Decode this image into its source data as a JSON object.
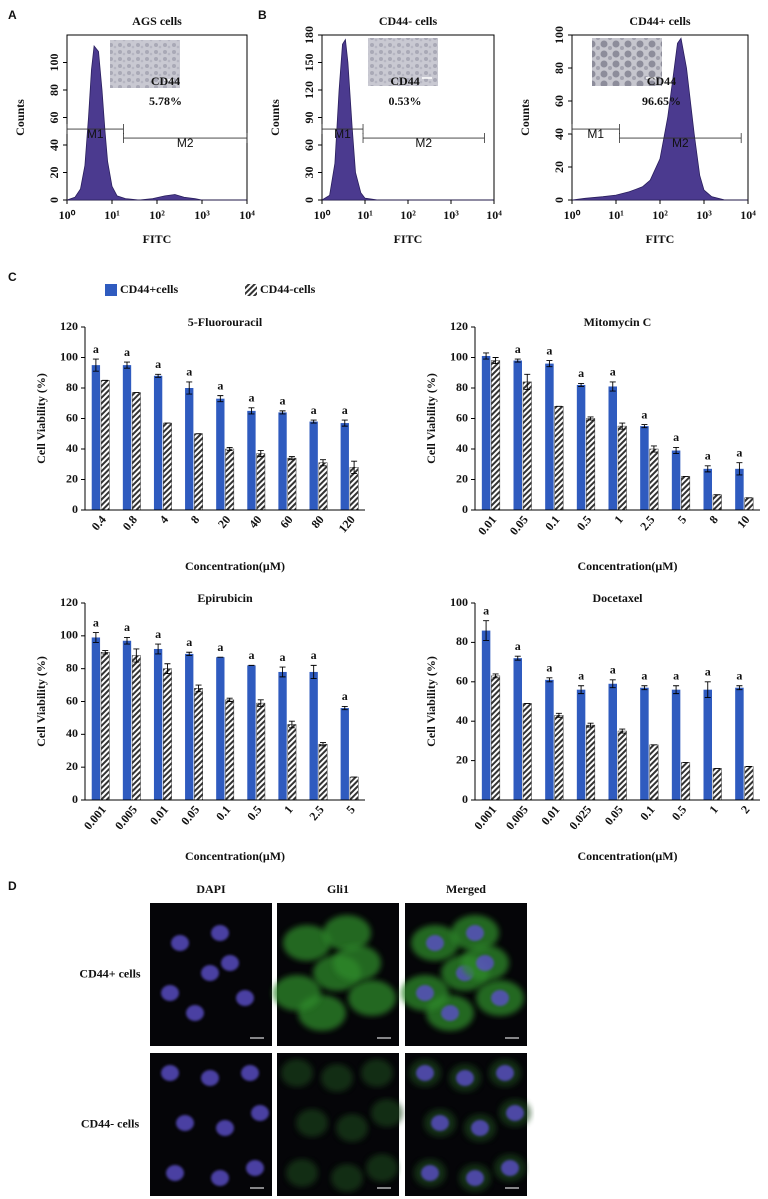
{
  "panels": [
    "A",
    "B",
    "C",
    "D"
  ],
  "legend": [
    {
      "name": "CD44+cells",
      "color": "#2f5bbf"
    },
    {
      "name": "CD44-cells",
      "color": "#333333",
      "hatch": true
    }
  ],
  "chart_data": [
    {
      "type": "area",
      "title": "AGS cells",
      "xlabel": "FITC",
      "ylabel": "Counts",
      "color": "#4b3a8f",
      "xlog": true,
      "xlim": [
        1,
        10000
      ],
      "xticks": [
        {
          "value": 1,
          "label": "10⁰"
        },
        {
          "value": 10,
          "label": "10¹"
        },
        {
          "value": 100,
          "label": "10²"
        },
        {
          "value": 1000,
          "label": "10³"
        },
        {
          "value": 10000,
          "label": "10⁴"
        }
      ],
      "ylim": [
        0,
        120
      ],
      "yticks": [
        0,
        20,
        40,
        60,
        80,
        100
      ],
      "x": [
        1,
        1.5,
        2,
        2.5,
        3,
        3.5,
        4,
        5,
        6,
        7,
        8,
        10,
        13,
        20,
        40,
        80,
        150,
        250,
        400,
        700,
        1000,
        10000
      ],
      "values": [
        0,
        2,
        8,
        25,
        60,
        95,
        112,
        108,
        80,
        50,
        28,
        10,
        3,
        1,
        0,
        1,
        3,
        4,
        2,
        1,
        0,
        0
      ],
      "gates": [
        {
          "name": "M1",
          "range": [
            1,
            18
          ]
        },
        {
          "name": "M2",
          "range": [
            18,
            10000
          ]
        }
      ],
      "annotation": [
        "CD44",
        "5.78%"
      ]
    },
    {
      "type": "area",
      "title": "CD44- cells",
      "xlabel": "FITC",
      "ylabel": "Counts",
      "color": "#4b3a8f",
      "xlog": true,
      "xlim": [
        1,
        10000
      ],
      "xticks": [
        {
          "value": 1,
          "label": "10⁰"
        },
        {
          "value": 10,
          "label": "10¹"
        },
        {
          "value": 100,
          "label": "10²"
        },
        {
          "value": 1000,
          "label": "10³"
        },
        {
          "value": 10000,
          "label": "10⁴"
        }
      ],
      "ylim": [
        0,
        180
      ],
      "yticks": [
        0,
        30,
        60,
        90,
        120,
        150,
        180
      ],
      "x": [
        1,
        1.5,
        2,
        2.5,
        3,
        3.5,
        4,
        5,
        6,
        8,
        10,
        20,
        10000
      ],
      "values": [
        0,
        5,
        40,
        120,
        170,
        175,
        150,
        80,
        30,
        8,
        2,
        0,
        0
      ],
      "gates": [
        {
          "name": "M1",
          "range": [
            1,
            9
          ]
        },
        {
          "name": "M2",
          "range": [
            9,
            6000
          ]
        }
      ],
      "annotation": [
        "CD44",
        "0.53%"
      ]
    },
    {
      "type": "area",
      "title": "CD44+ cells",
      "xlabel": "FITC",
      "ylabel": "Counts",
      "color": "#4b3a8f",
      "xlog": true,
      "xlim": [
        1,
        10000
      ],
      "xticks": [
        {
          "value": 1,
          "label": "10⁰"
        },
        {
          "value": 10,
          "label": "10¹"
        },
        {
          "value": 100,
          "label": "10²"
        },
        {
          "value": 1000,
          "label": "10³"
        },
        {
          "value": 10000,
          "label": "10⁴"
        }
      ],
      "ylim": [
        0,
        100
      ],
      "yticks": [
        0,
        20,
        40,
        60,
        80,
        100
      ],
      "x": [
        1,
        2,
        5,
        10,
        20,
        40,
        60,
        100,
        150,
        200,
        250,
        300,
        400,
        600,
        800,
        1000,
        1500,
        3000,
        10000
      ],
      "values": [
        0,
        1,
        2,
        3,
        5,
        8,
        12,
        25,
        50,
        75,
        95,
        98,
        80,
        40,
        15,
        6,
        2,
        0,
        0
      ],
      "gates": [
        {
          "name": "M1",
          "range": [
            1,
            12
          ]
        },
        {
          "name": "M2",
          "range": [
            12,
            7000
          ]
        }
      ],
      "annotation": [
        "CD44",
        "96.65%"
      ]
    },
    {
      "type": "bar",
      "title": "5-Fluorouracil",
      "xlabel": "Concentration(μM)",
      "ylabel": "Cell Viability (%)",
      "categories": [
        "0.4",
        "0.8",
        "4",
        "8",
        "20",
        "40",
        "60",
        "80",
        "120"
      ],
      "ylim": [
        0,
        120
      ],
      "yticks": [
        0,
        20,
        40,
        60,
        80,
        100,
        120
      ],
      "series": [
        {
          "color": "#2f5bbf",
          "values": [
            95,
            95,
            88,
            80,
            73,
            65,
            64,
            58,
            57
          ],
          "errors": [
            4,
            2,
            1,
            4,
            2,
            2,
            1,
            1,
            2
          ]
        },
        {
          "color": "#333333",
          "hatch": true,
          "values": [
            85,
            77,
            57,
            50,
            40,
            37,
            34,
            31,
            28
          ],
          "errors": [
            0,
            0,
            0,
            0,
            1,
            2,
            1,
            2,
            4
          ]
        }
      ],
      "annotations": [
        "a",
        "a",
        "a",
        "a",
        "a",
        "a",
        "a",
        "a",
        "a"
      ]
    },
    {
      "type": "bar",
      "title": "Mitomycin C",
      "xlabel": "Concentration(μM)",
      "ylabel": "Cell Viability (%)",
      "categories": [
        "0.01",
        "0.05",
        "0.1",
        "0.5",
        "1",
        "2.5",
        "5",
        "8",
        "10"
      ],
      "ylim": [
        0,
        120
      ],
      "yticks": [
        0,
        20,
        40,
        60,
        80,
        100,
        120
      ],
      "series": [
        {
          "color": "#2f5bbf",
          "values": [
            101,
            98,
            96,
            82,
            81,
            55,
            39,
            27,
            27
          ],
          "errors": [
            2,
            1,
            2,
            1,
            3,
            1,
            2,
            2,
            4
          ]
        },
        {
          "color": "#333333",
          "hatch": true,
          "values": [
            98,
            84,
            68,
            60,
            55,
            40,
            22,
            10,
            8
          ],
          "errors": [
            2,
            5,
            0,
            1,
            2,
            2,
            0,
            0,
            0
          ]
        }
      ],
      "annotations": [
        null,
        "a",
        "a",
        "a",
        "a",
        "a",
        "a",
        "a",
        "a"
      ]
    },
    {
      "type": "bar",
      "title": "Epirubicin",
      "xlabel": "Concentration(μM)",
      "ylabel": "Cell Viability (%)",
      "categories": [
        "0.001",
        "0.005",
        "0.01",
        "0.05",
        "0.1",
        "0.5",
        "1",
        "2.5",
        "5"
      ],
      "ylim": [
        0,
        120
      ],
      "yticks": [
        0,
        20,
        40,
        60,
        80,
        100,
        120
      ],
      "series": [
        {
          "color": "#2f5bbf",
          "values": [
            99,
            97,
            92,
            89,
            87,
            82,
            78,
            78,
            56
          ],
          "errors": [
            3,
            2,
            3,
            1,
            0,
            0,
            3,
            4,
            1
          ]
        },
        {
          "color": "#333333",
          "hatch": true,
          "values": [
            90,
            88,
            80,
            68,
            61,
            59,
            46,
            34,
            14
          ],
          "errors": [
            1,
            4,
            3,
            2,
            1,
            2,
            2,
            1,
            0
          ]
        }
      ],
      "annotations": [
        "a",
        "a",
        "a",
        "a",
        "a",
        "a",
        "a",
        "a",
        "a"
      ]
    },
    {
      "type": "bar",
      "title": "Docetaxel",
      "xlabel": "Concentration(μM)",
      "ylabel": "Cell Viability (%)",
      "categories": [
        "0.001",
        "0.005",
        "0.01",
        "0.025",
        "0.05",
        "0.1",
        "0.5",
        "1",
        "2"
      ],
      "ylim": [
        0,
        100
      ],
      "yticks": [
        0,
        20,
        40,
        60,
        80,
        100
      ],
      "series": [
        {
          "color": "#2f5bbf",
          "values": [
            86,
            72,
            61,
            56,
            59,
            57,
            56,
            56,
            57
          ],
          "errors": [
            5,
            1,
            1,
            2,
            2,
            1,
            2,
            4,
            1
          ]
        },
        {
          "color": "#333333",
          "hatch": true,
          "values": [
            63,
            49,
            43,
            38,
            35,
            28,
            19,
            16,
            17
          ],
          "errors": [
            1,
            0,
            1,
            1,
            1,
            0,
            0,
            0,
            0
          ]
        }
      ],
      "annotations": [
        "a",
        "a",
        "a",
        "a",
        "a",
        "a",
        "a",
        "a",
        "a"
      ]
    }
  ],
  "imaging": {
    "columns": [
      "DAPI",
      "Gli1",
      "Merged"
    ],
    "rows": [
      "CD44+ cells",
      "CD44- cells"
    ]
  }
}
